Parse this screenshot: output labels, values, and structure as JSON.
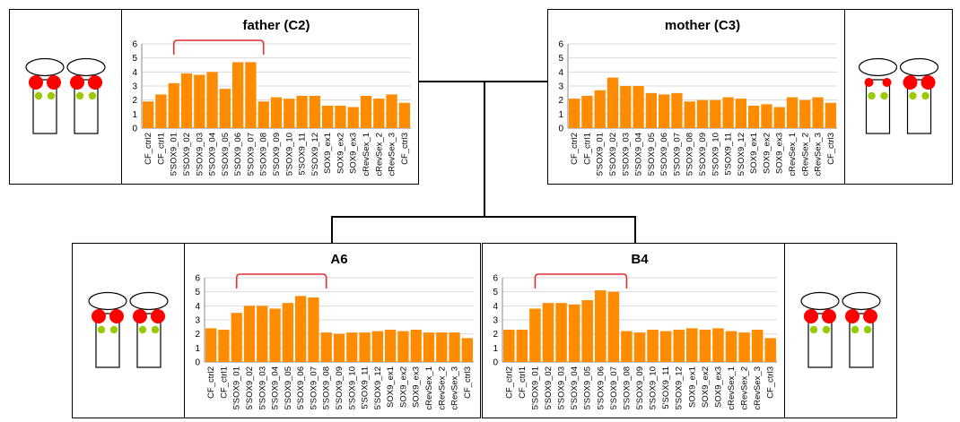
{
  "colors": {
    "bar": "#FF8C00",
    "bracket": "#E03030",
    "dot_red": "#FF0000",
    "dot_green": "#99CC00"
  },
  "categories": [
    "CF_ctrl2",
    "CF_ctrl1",
    "5'SOX9_01",
    "5'SOX9_02",
    "5'SOX9_03",
    "5'SOX9_04",
    "5'SOX9_05",
    "5'SOX9_06",
    "5'SOX9_07",
    "5'SOX9_08",
    "5'SOX9_09",
    "5'SOX9_10",
    "5'SOX9_11",
    "5'SOX9_12",
    "SOX9_ex1",
    "SOX9_ex2",
    "SOX9_ex3",
    "cRevSex_1",
    "cRevSex_2",
    "cRevSex_3",
    "CF_ctrl3"
  ],
  "chart_data": [
    {
      "type": "bar",
      "title": "father (C2)",
      "ylim": [
        0,
        6
      ],
      "yticks": [
        "0",
        "1",
        "2",
        "3",
        "4",
        "5",
        "6"
      ],
      "values": [
        1.9,
        2.4,
        3.2,
        3.9,
        3.8,
        4.0,
        2.8,
        4.7,
        4.7,
        1.9,
        2.2,
        2.1,
        2.3,
        2.3,
        1.6,
        1.6,
        1.5,
        2.3,
        2.1,
        2.4,
        1.8
      ],
      "bracket": [
        2,
        9
      ]
    },
    {
      "type": "bar",
      "title": "mother (C3)",
      "ylim": [
        0,
        6
      ],
      "yticks": [
        "0",
        "1",
        "2",
        "3",
        "4",
        "5",
        "6"
      ],
      "values": [
        2.1,
        2.3,
        2.7,
        3.6,
        3.0,
        3.0,
        2.5,
        2.4,
        2.5,
        1.9,
        2.0,
        2.0,
        2.2,
        2.1,
        1.6,
        1.7,
        1.5,
        2.2,
        2.0,
        2.2,
        1.8
      ]
    },
    {
      "type": "bar",
      "title": "A6",
      "ylim": [
        0,
        6
      ],
      "yticks": [
        "0",
        "1",
        "2",
        "3",
        "4",
        "5",
        "6"
      ],
      "values": [
        2.4,
        2.3,
        3.5,
        4.0,
        4.0,
        3.8,
        4.2,
        4.7,
        4.6,
        2.1,
        2.0,
        2.1,
        2.1,
        2.2,
        2.3,
        2.2,
        2.3,
        2.1,
        2.1,
        2.1,
        1.7
      ],
      "bracket": [
        2,
        9
      ]
    },
    {
      "type": "bar",
      "title": "B4",
      "ylim": [
        0,
        6
      ],
      "yticks": [
        "0",
        "1",
        "2",
        "3",
        "4",
        "5",
        "6"
      ],
      "values": [
        2.3,
        2.3,
        3.8,
        4.2,
        4.2,
        4.1,
        4.4,
        5.1,
        5.0,
        2.2,
        2.1,
        2.3,
        2.2,
        2.3,
        2.4,
        2.3,
        2.4,
        2.2,
        2.1,
        2.3,
        1.7
      ],
      "bracket": [
        2,
        9
      ]
    }
  ],
  "chromosomes": {
    "father": [
      {
        "dots": "big-big"
      },
      {
        "dots": "big-big"
      }
    ],
    "mother": [
      {
        "dots": "small-small"
      },
      {
        "dots": "big-big"
      }
    ],
    "A6": [
      {
        "dots": "big-big"
      },
      {
        "dots": "big-big"
      }
    ],
    "B4": [
      {
        "dots": "big-big"
      },
      {
        "dots": "big-big"
      }
    ]
  }
}
